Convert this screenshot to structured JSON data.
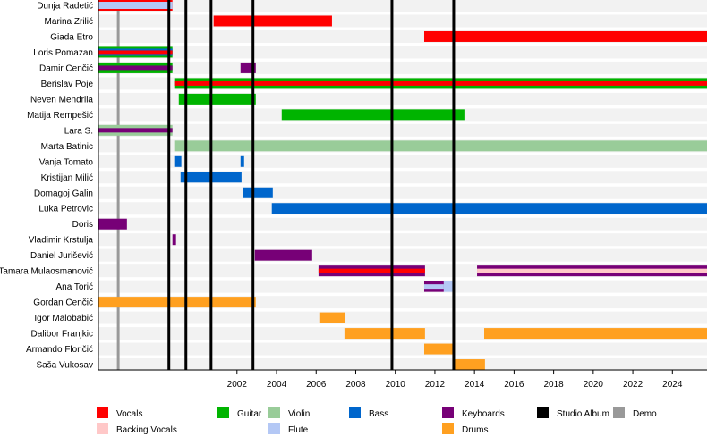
{
  "chart_data": {
    "type": "timeline",
    "xlim": [
      1995.0,
      2025.75
    ],
    "x_ticks": [
      2002,
      2004,
      2006,
      2008,
      2010,
      2012,
      2014,
      2016,
      2018,
      2020,
      2022,
      2024
    ],
    "roles": {
      "vocals": {
        "label": "Vocals",
        "color": "#ff0000"
      },
      "backing": {
        "label": "Backing Vocals",
        "color": "#ffc8c8"
      },
      "guitar": {
        "label": "Guitar",
        "color": "#00b400"
      },
      "violin": {
        "label": "Violin",
        "color": "#99cc99"
      },
      "flute": {
        "label": "Flute",
        "color": "#b4c8f5"
      },
      "bass": {
        "label": "Bass",
        "color": "#0066cc"
      },
      "keyboards": {
        "label": "Keyboards",
        "color": "#770077"
      },
      "drums": {
        "label": "Drums",
        "color": "#ffa020"
      },
      "album": {
        "label": "Studio Album",
        "color": "#000000"
      },
      "demo": {
        "label": "Demo",
        "color": "#999999"
      }
    },
    "studio_albums": [
      1998.56,
      1999.42,
      2000.69,
      2002.81,
      2009.83,
      2012.95
    ],
    "demos": [
      1996.0
    ],
    "members": [
      {
        "name": "Dunja Radetić",
        "spans": [
          {
            "start": 1995.0,
            "end": 1998.74,
            "roles": [
              "vocals",
              "flute"
            ]
          }
        ]
      },
      {
        "name": "Marina Zrilić",
        "spans": [
          {
            "start": 2000.82,
            "end": 2006.8,
            "roles": [
              "vocals"
            ]
          }
        ]
      },
      {
        "name": "Giada Etro",
        "spans": [
          {
            "start": 2011.46,
            "end": 2025.75,
            "roles": [
              "vocals"
            ]
          }
        ]
      },
      {
        "name": "Loris Pomazan",
        "spans": [
          {
            "start": 1995.0,
            "end": 1998.74,
            "roles": [
              "guitar",
              "bass",
              "vocals"
            ]
          }
        ]
      },
      {
        "name": "Damir Cenčić",
        "spans": [
          {
            "start": 1995.0,
            "end": 1998.74,
            "roles": [
              "guitar",
              "keyboards"
            ]
          },
          {
            "start": 2002.18,
            "end": 2002.95,
            "roles": [
              "keyboards"
            ]
          }
        ]
      },
      {
        "name": "Berislav Poje",
        "spans": [
          {
            "start": 1998.83,
            "end": 2025.75,
            "roles": [
              "guitar",
              "vocals"
            ]
          }
        ]
      },
      {
        "name": "Neven Mendrila",
        "spans": [
          {
            "start": 1999.06,
            "end": 2002.95,
            "roles": [
              "guitar"
            ]
          }
        ]
      },
      {
        "name": "Matija Rempešić",
        "spans": [
          {
            "start": 2004.26,
            "end": 2013.49,
            "roles": [
              "guitar"
            ]
          }
        ]
      },
      {
        "name": "Lara S.",
        "spans": [
          {
            "start": 1995.0,
            "end": 1998.74,
            "roles": [
              "violin",
              "keyboards"
            ]
          }
        ]
      },
      {
        "name": "Marta Batinic",
        "spans": [
          {
            "start": 1998.83,
            "end": 2025.75,
            "roles": [
              "violin"
            ]
          }
        ]
      },
      {
        "name": "Vanja Tomato",
        "spans": [
          {
            "start": 1998.83,
            "end": 1999.19,
            "roles": [
              "bass"
            ]
          },
          {
            "start": 2002.18,
            "end": 2002.36,
            "roles": [
              "bass"
            ]
          }
        ]
      },
      {
        "name": "Kristijan Milić",
        "spans": [
          {
            "start": 1999.15,
            "end": 2002.23,
            "roles": [
              "bass"
            ]
          }
        ]
      },
      {
        "name": "Domagoj Galin",
        "spans": [
          {
            "start": 2002.32,
            "end": 2003.81,
            "roles": [
              "bass"
            ]
          }
        ]
      },
      {
        "name": "Luka Petrovic",
        "spans": [
          {
            "start": 2003.76,
            "end": 2025.75,
            "roles": [
              "bass"
            ]
          }
        ]
      },
      {
        "name": "Doris",
        "spans": [
          {
            "start": 1995.0,
            "end": 1996.44,
            "roles": [
              "keyboards"
            ]
          }
        ]
      },
      {
        "name": "Vladimir Krstulja",
        "spans": [
          {
            "start": 1998.74,
            "end": 1998.92,
            "roles": [
              "keyboards"
            ]
          }
        ]
      },
      {
        "name": "Daniel Jurišević",
        "spans": [
          {
            "start": 2002.9,
            "end": 2005.8,
            "roles": [
              "keyboards"
            ]
          }
        ]
      },
      {
        "name": "Tamara Mulaosmanović",
        "spans": [
          {
            "start": 2006.12,
            "end": 2011.5,
            "roles": [
              "keyboards",
              "vocals"
            ]
          },
          {
            "start": 2014.13,
            "end": 2025.75,
            "roles": [
              "keyboards",
              "backing"
            ]
          }
        ]
      },
      {
        "name": "Ana Torić",
        "spans": [
          {
            "start": 2011.46,
            "end": 2012.45,
            "roles": [
              "keyboards",
              "flute"
            ]
          },
          {
            "start": 2012.45,
            "end": 2013.0,
            "roles": [
              "flute"
            ]
          }
        ]
      },
      {
        "name": "Gordan Cenčić",
        "spans": [
          {
            "start": 1995.0,
            "end": 2002.95,
            "roles": [
              "drums"
            ]
          }
        ]
      },
      {
        "name": "Igor Malobabić",
        "spans": [
          {
            "start": 2006.16,
            "end": 2007.48,
            "roles": [
              "drums"
            ]
          }
        ]
      },
      {
        "name": "Dalibor Franjkic",
        "spans": [
          {
            "start": 2007.43,
            "end": 2011.5,
            "roles": [
              "drums"
            ]
          },
          {
            "start": 2014.49,
            "end": 2025.75,
            "roles": [
              "drums"
            ]
          }
        ]
      },
      {
        "name": "Armando Floričić",
        "spans": [
          {
            "start": 2011.46,
            "end": 2013.0,
            "roles": [
              "drums"
            ]
          }
        ]
      },
      {
        "name": "Saša Vukosav",
        "spans": [
          {
            "start": 2012.95,
            "end": 2014.53,
            "roles": [
              "drums"
            ]
          }
        ]
      }
    ],
    "legend": {
      "placement": "bottom",
      "rows": [
        [
          "vocals",
          "guitar",
          "violin",
          "bass",
          "keyboards",
          "album",
          "demo"
        ],
        [
          "backing",
          null,
          "flute",
          null,
          "drums",
          null,
          null
        ]
      ]
    }
  }
}
